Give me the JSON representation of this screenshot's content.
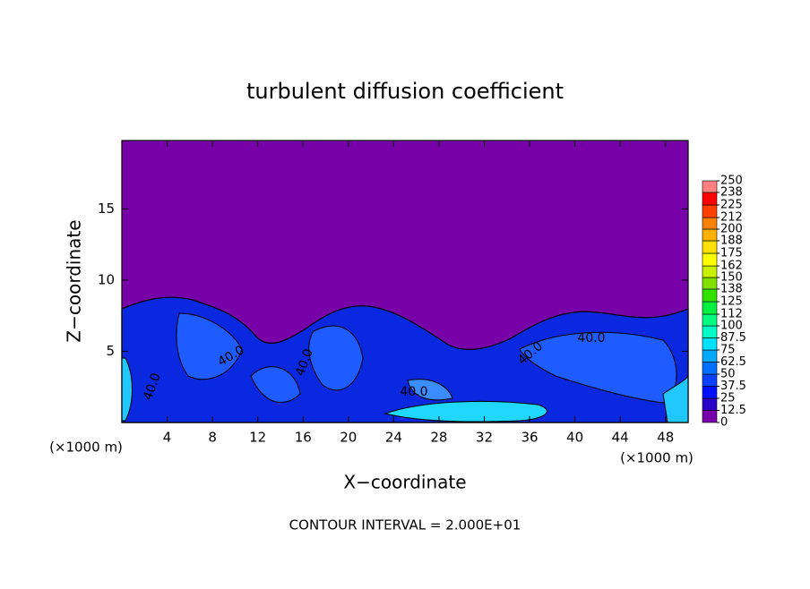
{
  "chart_data": {
    "type": "contour",
    "title": "turbulent diffusion coefficient",
    "x_label": "X−coordinate",
    "y_label": "Z−coordinate",
    "x_unit_label": "(×1000 m)",
    "footer": "CONTOUR INTERVAL = 2.000E+01",
    "xlim": [
      0,
      50
    ],
    "ylim": [
      0,
      19.8
    ],
    "xticks": [
      4,
      8,
      12,
      16,
      20,
      24,
      28,
      32,
      36,
      40,
      44,
      48
    ],
    "yticks": [
      5,
      10,
      15
    ],
    "contour_labels": [
      "40.0",
      "40.0",
      "40.0",
      "40.0",
      "40.0",
      "40.0"
    ],
    "colorbar": {
      "levels": [
        0,
        12.5,
        25,
        37.5,
        50,
        62.5,
        75,
        87.5,
        100,
        112,
        125,
        138,
        150,
        162,
        175,
        188,
        200,
        212,
        225,
        238,
        250
      ],
      "colors": [
        "#7800a8",
        "#2800c8",
        "#0010ff",
        "#0a40ff",
        "#0070ff",
        "#00a8ff",
        "#00e0ff",
        "#00ffc8",
        "#00ff80",
        "#00f040",
        "#30e000",
        "#80e000",
        "#c8f000",
        "#ffff00",
        "#ffe000",
        "#ffb000",
        "#ff8000",
        "#ff4000",
        "#ff0000",
        "#ff8080"
      ]
    }
  }
}
